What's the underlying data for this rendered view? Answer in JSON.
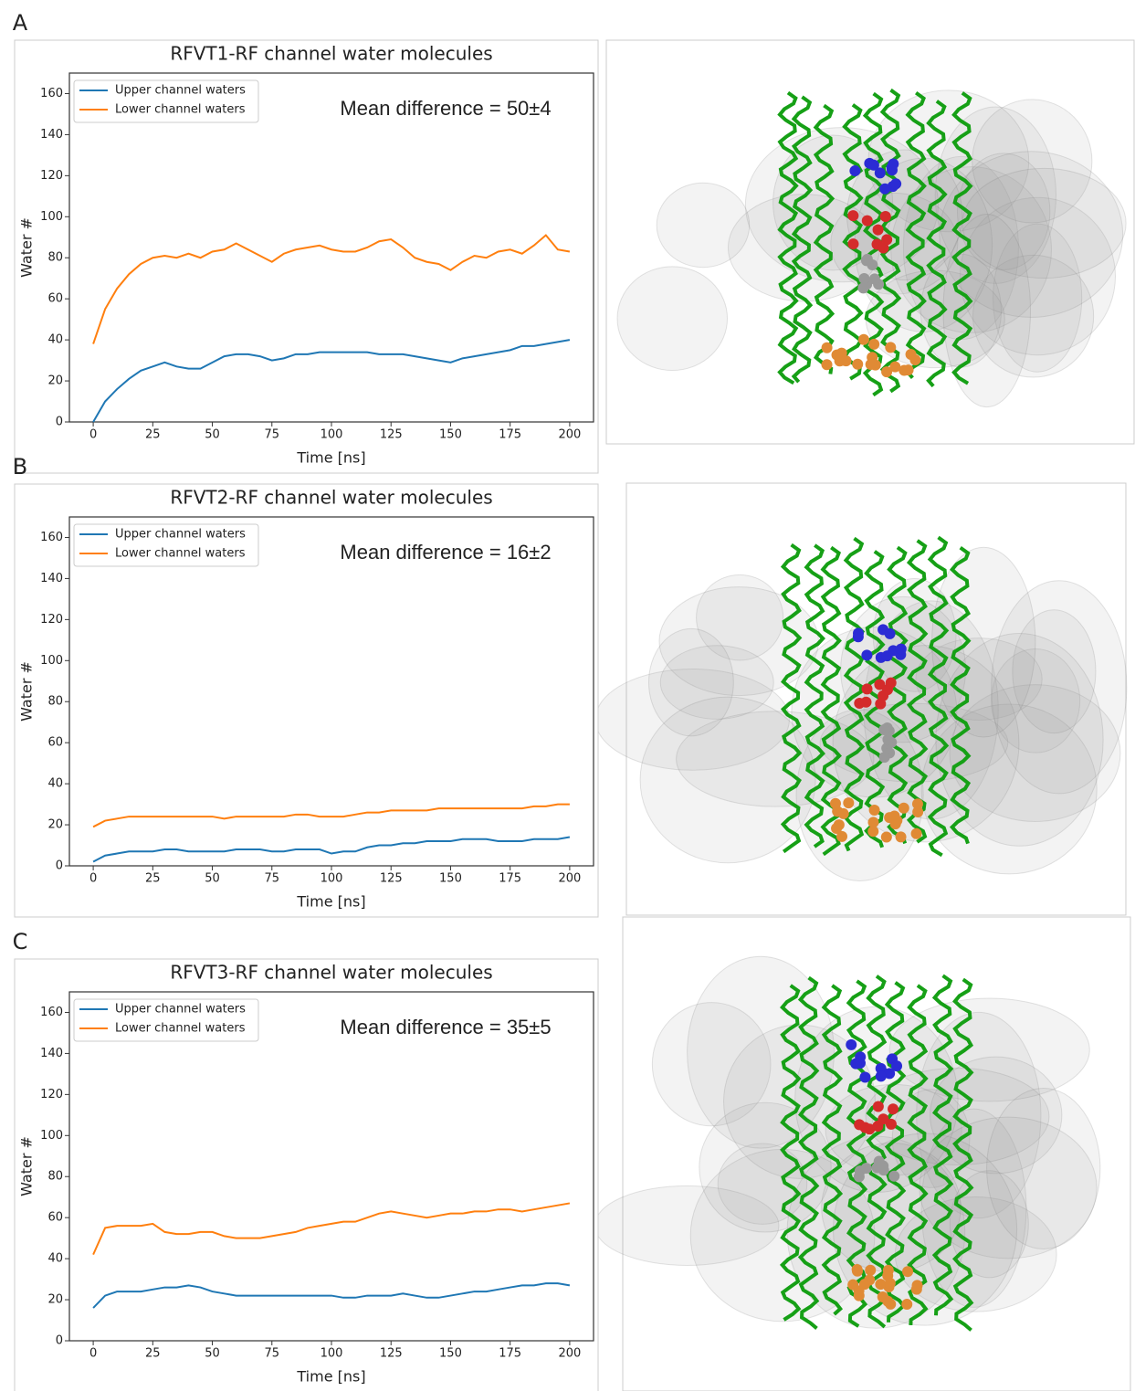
{
  "chart_data": [
    {
      "type": "line",
      "panel": "A",
      "title": "RFVT1-RF channel water molecules",
      "annotation": "Mean difference = 50±4",
      "xlabel": "Time [ns]",
      "ylabel": "Water #",
      "x": [
        0,
        5,
        10,
        15,
        20,
        25,
        30,
        35,
        40,
        45,
        50,
        55,
        60,
        65,
        70,
        75,
        80,
        85,
        90,
        95,
        100,
        105,
        110,
        115,
        120,
        125,
        130,
        135,
        140,
        145,
        150,
        155,
        160,
        165,
        170,
        175,
        180,
        185,
        190,
        195,
        200
      ],
      "series": [
        {
          "name": "Upper channel waters",
          "color": "#1f77b4",
          "values": [
            0,
            10,
            16,
            21,
            25,
            27,
            29,
            27,
            26,
            26,
            29,
            32,
            33,
            33,
            32,
            30,
            31,
            33,
            33,
            34,
            34,
            34,
            34,
            34,
            33,
            33,
            33,
            32,
            31,
            30,
            29,
            31,
            32,
            33,
            34,
            35,
            37,
            37,
            38,
            39,
            40
          ]
        },
        {
          "name": "Lower channel waters",
          "color": "#ff7f0e",
          "values": [
            38,
            55,
            65,
            72,
            77,
            80,
            81,
            80,
            82,
            80,
            83,
            84,
            87,
            84,
            81,
            78,
            82,
            84,
            85,
            86,
            84,
            83,
            83,
            85,
            88,
            89,
            85,
            80,
            78,
            77,
            74,
            78,
            81,
            80,
            83,
            84,
            82,
            86,
            91,
            84,
            83
          ]
        }
      ],
      "xlim": [
        -10,
        210
      ],
      "ylim": [
        0,
        170
      ],
      "xticks": [
        0,
        25,
        50,
        75,
        100,
        125,
        150,
        175,
        200
      ],
      "yticks": [
        0,
        20,
        40,
        60,
        80,
        100,
        120,
        140,
        160
      ]
    },
    {
      "type": "line",
      "panel": "B",
      "title": "RFVT2-RF channel water molecules",
      "annotation": "Mean difference = 16±2",
      "xlabel": "Time [ns]",
      "ylabel": "Water #",
      "x": [
        0,
        5,
        10,
        15,
        20,
        25,
        30,
        35,
        40,
        45,
        50,
        55,
        60,
        65,
        70,
        75,
        80,
        85,
        90,
        95,
        100,
        105,
        110,
        115,
        120,
        125,
        130,
        135,
        140,
        145,
        150,
        155,
        160,
        165,
        170,
        175,
        180,
        185,
        190,
        195,
        200
      ],
      "series": [
        {
          "name": "Upper channel waters",
          "color": "#1f77b4",
          "values": [
            2,
            5,
            6,
            7,
            7,
            7,
            8,
            8,
            7,
            7,
            7,
            7,
            8,
            8,
            8,
            7,
            7,
            8,
            8,
            8,
            6,
            7,
            7,
            9,
            10,
            10,
            11,
            11,
            12,
            12,
            12,
            13,
            13,
            13,
            12,
            12,
            12,
            13,
            13,
            13,
            14
          ]
        },
        {
          "name": "Lower channel waters",
          "color": "#ff7f0e",
          "values": [
            19,
            22,
            23,
            24,
            24,
            24,
            24,
            24,
            24,
            24,
            24,
            23,
            24,
            24,
            24,
            24,
            24,
            25,
            25,
            24,
            24,
            24,
            25,
            26,
            26,
            27,
            27,
            27,
            27,
            28,
            28,
            28,
            28,
            28,
            28,
            28,
            28,
            29,
            29,
            30,
            30
          ]
        }
      ],
      "xlim": [
        -10,
        210
      ],
      "ylim": [
        0,
        170
      ],
      "xticks": [
        0,
        25,
        50,
        75,
        100,
        125,
        150,
        175,
        200
      ],
      "yticks": [
        0,
        20,
        40,
        60,
        80,
        100,
        120,
        140,
        160
      ]
    },
    {
      "type": "line",
      "panel": "C",
      "title": "RFVT3-RF channel water molecules",
      "annotation": "Mean difference = 35±5",
      "xlabel": "Time [ns]",
      "ylabel": "Water #",
      "x": [
        0,
        5,
        10,
        15,
        20,
        25,
        30,
        35,
        40,
        45,
        50,
        55,
        60,
        65,
        70,
        75,
        80,
        85,
        90,
        95,
        100,
        105,
        110,
        115,
        120,
        125,
        130,
        135,
        140,
        145,
        150,
        155,
        160,
        165,
        170,
        175,
        180,
        185,
        190,
        195,
        200
      ],
      "series": [
        {
          "name": "Upper channel waters",
          "color": "#1f77b4",
          "values": [
            16,
            22,
            24,
            24,
            24,
            25,
            26,
            26,
            27,
            26,
            24,
            23,
            22,
            22,
            22,
            22,
            22,
            22,
            22,
            22,
            22,
            21,
            21,
            22,
            22,
            22,
            23,
            22,
            21,
            21,
            22,
            23,
            24,
            24,
            25,
            26,
            27,
            27,
            28,
            28,
            27
          ]
        },
        {
          "name": "Lower channel waters",
          "color": "#ff7f0e",
          "values": [
            42,
            55,
            56,
            56,
            56,
            57,
            53,
            52,
            52,
            53,
            53,
            51,
            50,
            50,
            50,
            51,
            52,
            53,
            55,
            56,
            57,
            58,
            58,
            60,
            62,
            63,
            62,
            61,
            60,
            61,
            62,
            62,
            63,
            63,
            64,
            64,
            63,
            64,
            65,
            66,
            67
          ]
        }
      ],
      "xlim": [
        -10,
        210
      ],
      "ylim": [
        0,
        170
      ],
      "xticks": [
        0,
        25,
        50,
        75,
        100,
        125,
        150,
        175,
        200
      ],
      "yticks": [
        0,
        20,
        40,
        60,
        80,
        100,
        120,
        140,
        160
      ]
    }
  ]
}
